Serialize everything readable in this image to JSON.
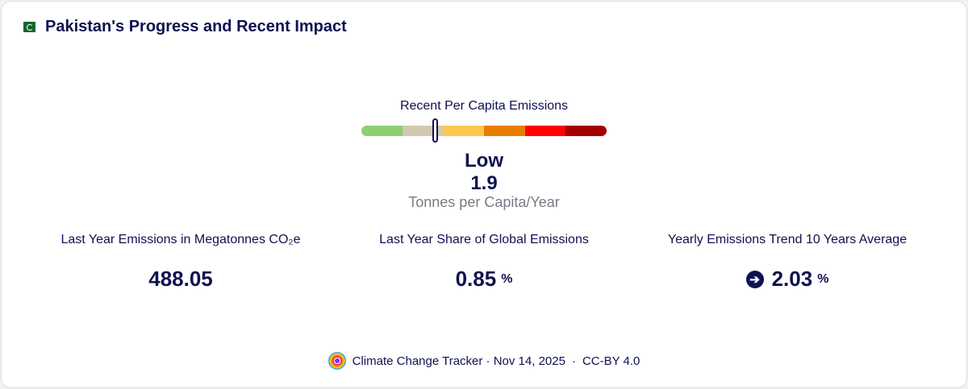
{
  "header": {
    "title": "Pakistan's Progress and Recent Impact",
    "flag_icon": "pakistan-flag"
  },
  "gauge": {
    "label": "Recent Per Capita Emissions",
    "position_fraction": 0.3,
    "segments": [
      "#8ccf72",
      "#d3c9b0",
      "#fdc84f",
      "#e87e00",
      "#ff0000",
      "#a30000"
    ],
    "category": "Low",
    "value": "1.9",
    "unit": "Tonnes per Capita/Year"
  },
  "stats": [
    {
      "label": "Last Year Emissions in Megatonnes CO₂e",
      "value": "488.05",
      "unit": ""
    },
    {
      "label": "Last Year Share of Global Emissions",
      "value": "0.85",
      "unit": "%"
    },
    {
      "label": "Yearly Emissions Trend 10 Years Average",
      "value": "2.03",
      "unit": "%",
      "icon": "arrow-right-icon"
    }
  ],
  "footer": {
    "source": "Climate Change Tracker · Nov 14, 2025",
    "sep": "·",
    "license": "CC-BY 4.0"
  }
}
